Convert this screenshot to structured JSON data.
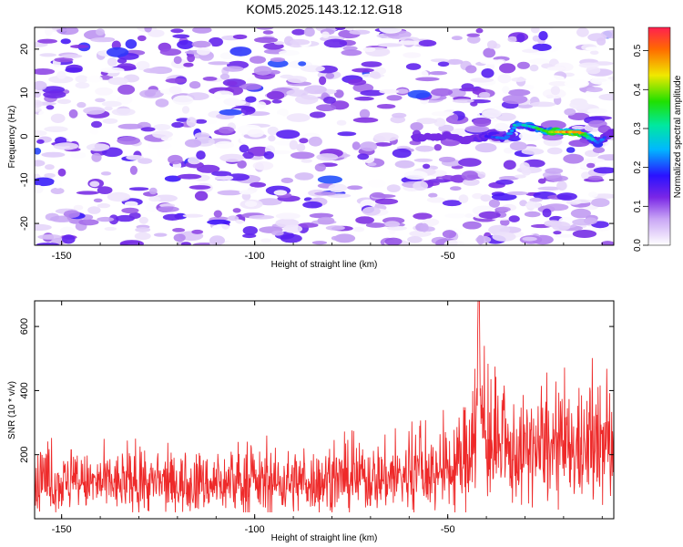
{
  "title": "KOM5.2025.143.12.12.G18",
  "colors": {
    "snr_line": "#ee2a2a",
    "heat_low": "#ffffff",
    "heat_mid": "#8a2be2",
    "heat_track": "#00d000",
    "heat_peak": "#ff0000"
  },
  "chart_data": [
    {
      "type": "heatmap",
      "title": "KOM5.2025.143.12.12.G18",
      "xlabel": "Height of straight line (km)",
      "ylabel": "Frequency (Hz)",
      "xlim": [
        -157,
        -7
      ],
      "ylim": [
        -25,
        25
      ],
      "x_ticks": [
        -150,
        -100,
        -50
      ],
      "y_ticks": [
        -20,
        -10,
        0,
        10,
        20
      ],
      "grid": false,
      "colorbar": {
        "label": "Normalized spectral amplitude",
        "range": [
          0,
          0.56
        ],
        "ticks": [
          0,
          0.1,
          0.2,
          0.3,
          0.4,
          0.5
        ],
        "colormap": "white-purple-blue-cyan-green-yellow-red"
      },
      "signal_track": {
        "description_x": [
          -58,
          -50,
          -45,
          -40,
          -35,
          -32,
          -28,
          -24,
          -20,
          -16,
          -13,
          -11,
          -9,
          -7
        ],
        "frequency": [
          -0.2,
          0.0,
          -1.0,
          0.0,
          -0.5,
          2.8,
          2.2,
          1.0,
          1.0,
          1.0,
          -0.5,
          -1.5,
          0.0,
          1.0
        ],
        "amplitude": [
          0.18,
          0.12,
          0.15,
          0.2,
          0.22,
          0.28,
          0.3,
          0.45,
          0.5,
          0.55,
          0.3,
          0.25,
          0.2,
          0.15
        ]
      },
      "background_amplitude_range": [
        0.0,
        0.15
      ]
    },
    {
      "type": "line",
      "xlabel": "Height of straight line (km)",
      "ylabel": "SNR (10 * v/v)",
      "xlim": [
        -157,
        -7
      ],
      "ylim": [
        0,
        680
      ],
      "x_ticks": [
        -150,
        -100,
        -50
      ],
      "y_ticks": [
        200,
        400,
        600
      ],
      "grid": false,
      "series": [
        {
          "x_range": [
            -157,
            -7
          ],
          "envelope": {
            "x": [
              -157,
              -140,
              -120,
              -100,
              -80,
              -60,
              -48,
              -45,
              -43,
              -42,
              -40,
              -35,
              -30,
              -20,
              -10,
              -7
            ],
            "mean": [
              110,
              110,
              110,
              110,
              120,
              135,
              150,
              200,
              320,
              380,
              230,
              200,
              210,
              215,
              220,
              230
            ],
            "spread": [
              80,
              80,
              80,
              85,
              90,
              100,
              120,
              160,
              220,
              260,
              150,
              140,
              140,
              150,
              160,
              180
            ]
          },
          "peak": {
            "x": -42,
            "y": 680
          }
        }
      ]
    }
  ]
}
